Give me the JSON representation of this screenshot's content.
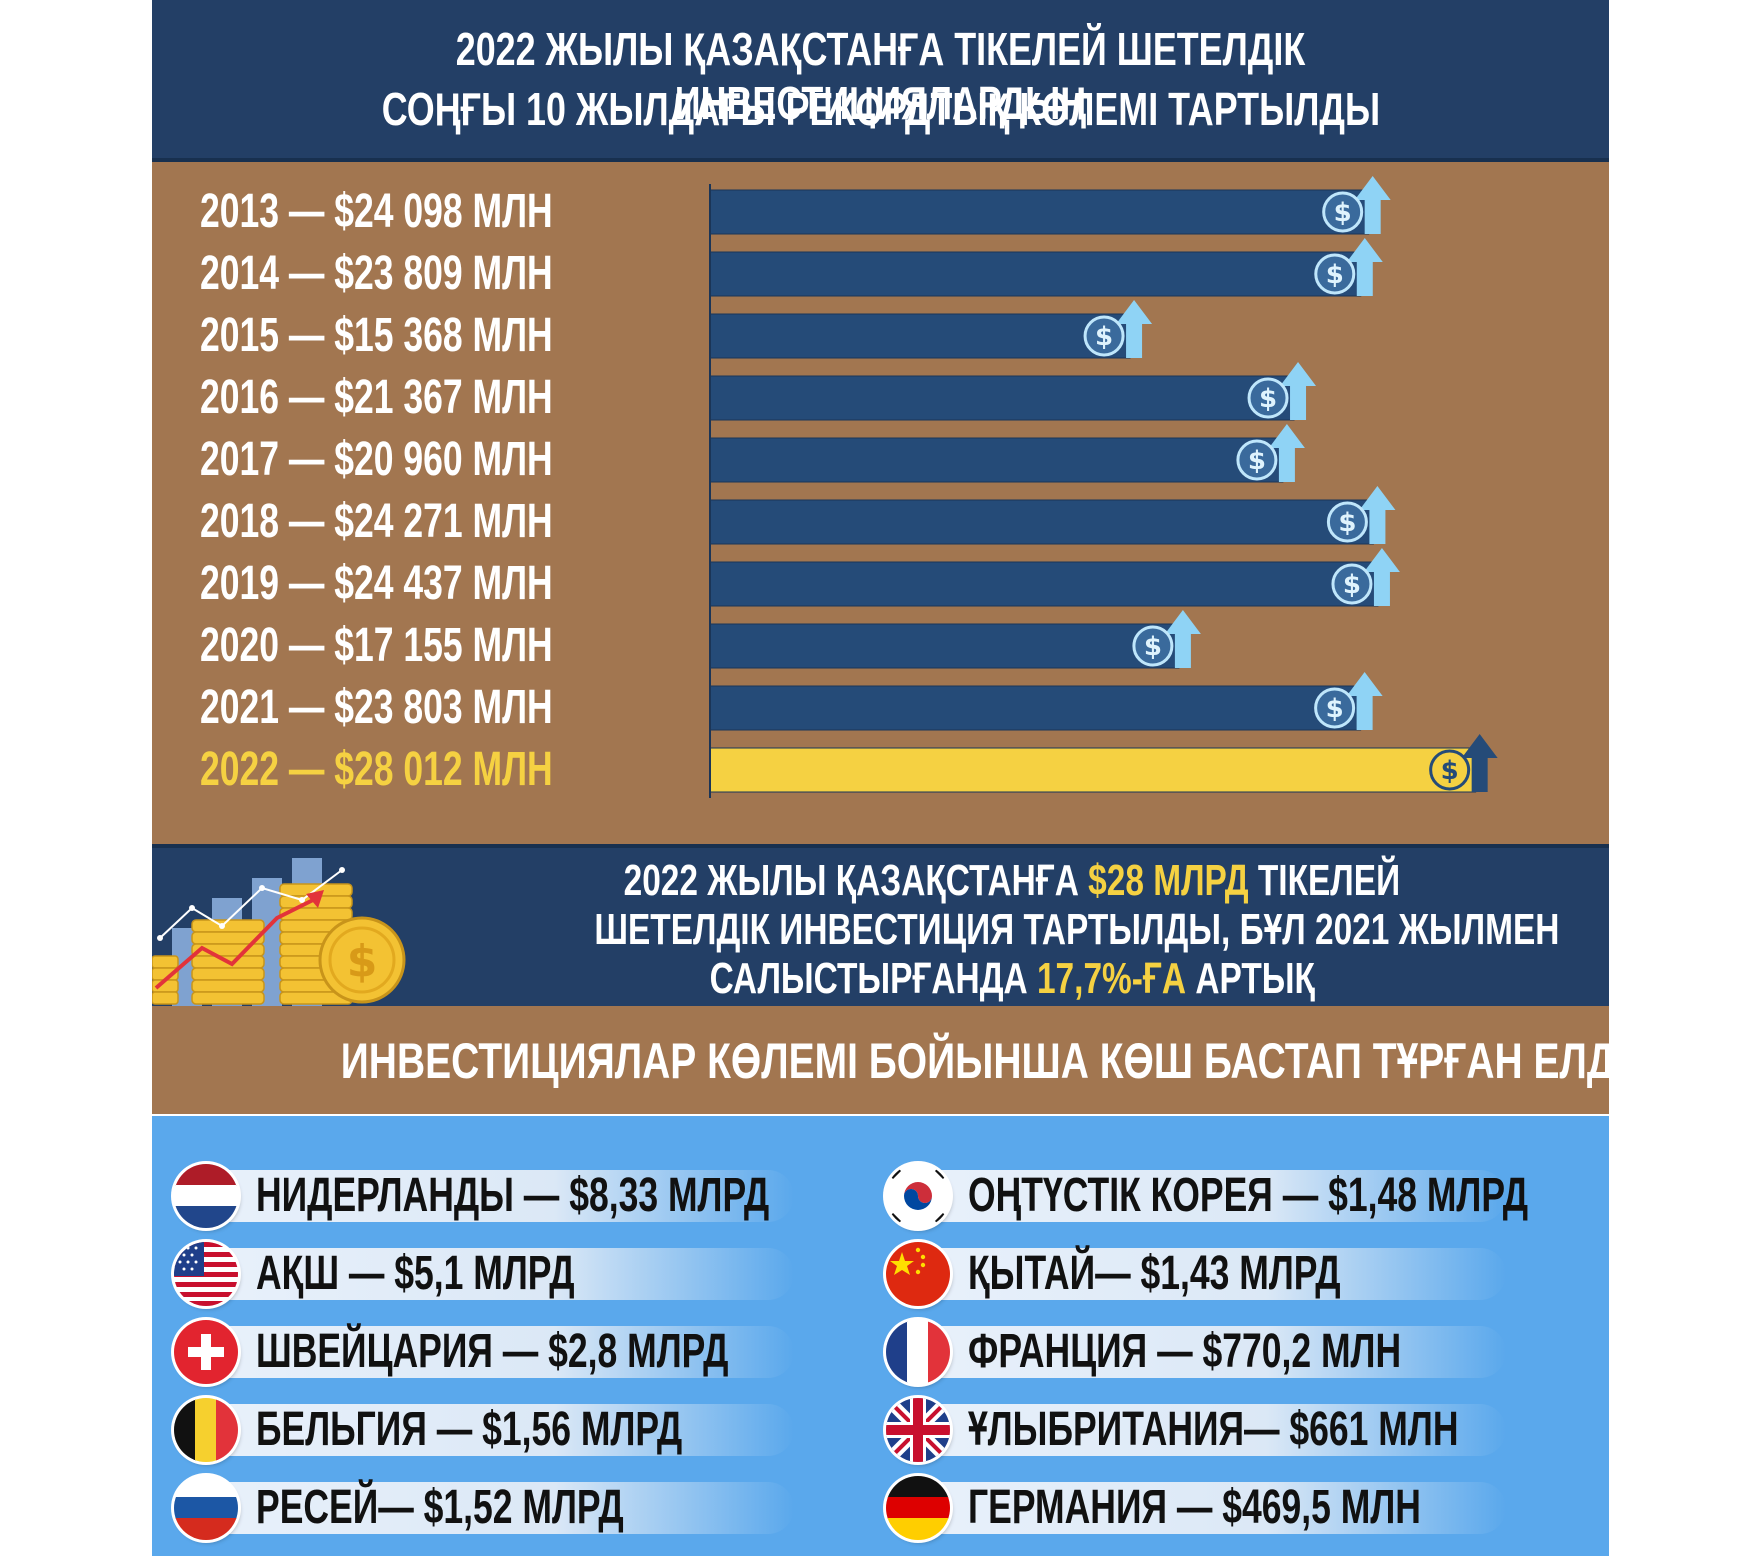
{
  "header": {
    "line1": "2022 ЖЫЛЫ ҚАЗАҚСТАНҒА ТІКЕЛЕЙ ШЕТЕЛДІК ИНВЕСТИЦИЯЛАРДЫҢ",
    "line2": "СОҢҒЫ 10 ЖЫЛДАҒЫ РЕКОРДТЫҚ КӨЛЕМІ ТАРТЫЛДЫ"
  },
  "colors": {
    "navy": "#233f66",
    "brown": "#a27650",
    "bar": "#254b78",
    "highlight": "#f5d142",
    "countries_bg": "#5aa8ec",
    "arrow": "#8fd3f5"
  },
  "chart_data": {
    "type": "bar",
    "orientation": "horizontal",
    "categories": [
      "2013",
      "2014",
      "2015",
      "2016",
      "2017",
      "2018",
      "2019",
      "2020",
      "2021",
      "2022"
    ],
    "values": [
      24098,
      23809,
      15368,
      21367,
      20960,
      24271,
      24437,
      17155,
      23803,
      28012
    ],
    "unit": "МЛН",
    "labels": [
      "2013 — $24 098 МЛН",
      "2014 — $23 809 МЛН",
      "2015 — $15 368 МЛН",
      "2016 — $21 367 МЛН",
      "2017 — $20 960 МЛН",
      "2018 — $24 271 МЛН",
      "2019 — $24 437 МЛН",
      "2020 — $17 155 МЛН",
      "2021 — $23 803 МЛН",
      "2022 — $28 012 МЛН"
    ],
    "highlight_category": "2022",
    "bar_icon": "dollar-coin-arrow-up-icon",
    "title": "",
    "xlabel": "",
    "ylabel": ""
  },
  "summary": {
    "l1_a": "2022 ЖЫЛЫ ҚАЗАҚСТАНҒА ",
    "l1_b": "$28 МЛРД",
    "l1_c": " ТІКЕЛЕЙ",
    "l2": "ШЕТЕЛДІК ИНВЕСТИЦИЯ ТАРТЫЛДЫ, БҰЛ 2021 ЖЫЛМЕН",
    "l3_a": "САЛЫСТЫРҒАНДА ",
    "l3_b": "17,7%-ҒА",
    "l3_c": " АРТЫҚ"
  },
  "leaders": {
    "title": "ИНВЕСТИЦИЯЛАР КӨЛЕМІ БОЙЫНША КӨШ БАСТАП ТҰРҒАН ЕЛДЕР:"
  },
  "countries": [
    {
      "label": "НИДЕРЛАНДЫ — $8,33 МЛРД",
      "flag": "netherlands-flag-icon"
    },
    {
      "label": "АҚШ — $5,1 МЛРД",
      "flag": "usa-flag-icon"
    },
    {
      "label": "ШВЕЙЦАРИЯ — $2,8 МЛРД",
      "flag": "switzerland-flag-icon"
    },
    {
      "label": "БЕЛЬГИЯ — $1,56 МЛРД",
      "flag": "belgium-flag-icon"
    },
    {
      "label": "РЕСЕЙ— $1,52 МЛРД",
      "flag": "russia-flag-icon"
    },
    {
      "label": "ОҢТҮСТІК КОРЕЯ — $1,48 МЛРД",
      "flag": "south-korea-flag-icon"
    },
    {
      "label": "ҚЫТАЙ— $1,43 МЛРД",
      "flag": "china-flag-icon"
    },
    {
      "label": "ФРАНЦИЯ — $770,2 МЛН",
      "flag": "france-flag-icon"
    },
    {
      "label": "ҰЛЫБРИТАНИЯ— $661 МЛН",
      "flag": "uk-flag-icon"
    },
    {
      "label": "ГЕРМАНИЯ — $469,5 МЛН",
      "flag": "germany-flag-icon"
    }
  ]
}
